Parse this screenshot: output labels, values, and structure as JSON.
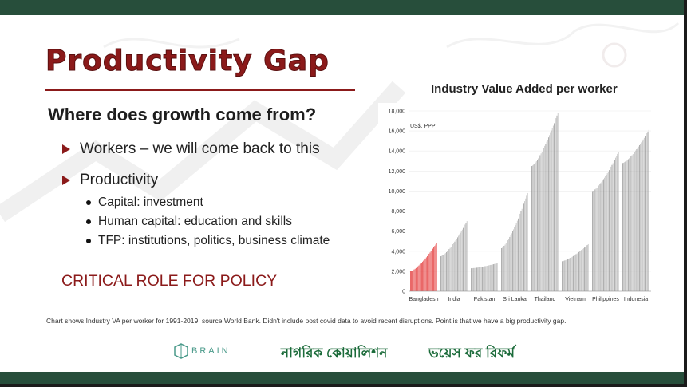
{
  "slide": {
    "title": "Productivity Gap",
    "subtitle": "Where does growth come from?",
    "bullets": [
      {
        "label": "Workers – we will come back to this"
      },
      {
        "label": "Productivity"
      }
    ],
    "sub_bullets": [
      "Capital: investment",
      "Human capital: education and skills",
      "TFP: institutions, politics, business climate"
    ],
    "policy_text": "CRITICAL ROLE FOR POLICY",
    "footnote": "Chart shows Industry VA per worker for 1991-2019. source World Bank. Didn't include post covid data to avoid recent disruptions. Point is that we have a big productivity gap.",
    "colors": {
      "accent": "#8b1a1a",
      "bar_dark_green": "#274e3b",
      "highlight_bar": "#e02020",
      "gray_bar": "#9a9a9a"
    }
  },
  "logos": {
    "brain": "BRAIN",
    "brain_icon": "brain-logo-icon",
    "coalition": "নাগরিক কোয়ালিশন",
    "voice": "ভয়েস ফর রিফর্ম"
  },
  "chart_data": {
    "type": "bar",
    "title": "Industry Value Added per worker",
    "ylabel": "US$, PPP",
    "ylim": [
      0,
      18000
    ],
    "yticks": [
      "0",
      "2,000",
      "4,000",
      "6,000",
      "8,000",
      "10,000",
      "12,000",
      "14,000",
      "16,000",
      "18,000"
    ],
    "highlight": "Bangladesh",
    "series": [
      {
        "name": "Bangladesh",
        "start": 2000,
        "end": 4800
      },
      {
        "name": "India",
        "start": 3500,
        "end": 7000
      },
      {
        "name": "Pakistan",
        "start": 2300,
        "end": 2800
      },
      {
        "name": "Sri Lanka",
        "start": 4300,
        "end": 9800
      },
      {
        "name": "Thailand",
        "start": 12500,
        "end": 17800
      },
      {
        "name": "Vietnam",
        "start": 3000,
        "end": 4700
      },
      {
        "name": "Philippines",
        "start": 10000,
        "end": 13900
      },
      {
        "name": "Indonesia",
        "start": 12800,
        "end": 16100
      }
    ]
  }
}
